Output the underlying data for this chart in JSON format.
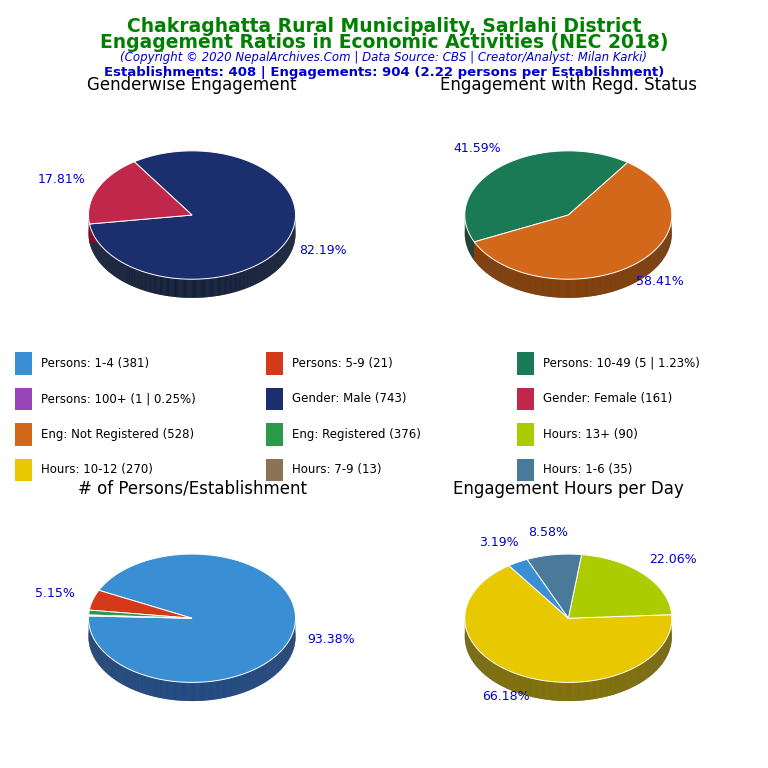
{
  "title_line1": "Chakraghatta Rural Municipality, Sarlahi District",
  "title_line2": "Engagement Ratios in Economic Activities (NEC 2018)",
  "subtitle": "(Copyright © 2020 NepalArchives.Com | Data Source: CBS | Creator/Analyst: Milan Karki)",
  "stats_line": "Establishments: 408 | Engagements: 904 (2.22 persons per Establishment)",
  "title_color": "#008000",
  "subtitle_color": "#0000cc",
  "stats_color": "#0000cc",
  "pie1_title": "Genderwise Engagement",
  "pie1_values": [
    82.19,
    17.81
  ],
  "pie1_colors": [
    "#1b2f6e",
    "#c0274a"
  ],
  "pie1_edge_colors": [
    "#0d1a3a",
    "#8b0a28"
  ],
  "pie1_labels": [
    "82.19%",
    "17.81%"
  ],
  "pie1_label_colors": [
    "#0000cc",
    "#0000cc"
  ],
  "pie1_startangle": 188,
  "pie2_title": "Engagement with Regd. Status",
  "pie2_values": [
    41.59,
    58.41
  ],
  "pie2_colors": [
    "#1a7a55",
    "#d4681a"
  ],
  "pie2_edge_colors": [
    "#0d3d2a",
    "#8b3d00"
  ],
  "pie2_labels": [
    "41.59%",
    "58.41%"
  ],
  "pie2_label_colors": [
    "#0000cc",
    "#0000cc"
  ],
  "pie2_startangle": 55,
  "pie3_title": "# of Persons/Establishment",
  "pie3_values": [
    93.38,
    5.15,
    1.22,
    0.25
  ],
  "pie3_colors": [
    "#3a8fd4",
    "#d43a1a",
    "#2a9a4a",
    "#9944bb"
  ],
  "pie3_edge_colors": [
    "#1a4a8b",
    "#8b1a00",
    "#1a5a2a",
    "#552299"
  ],
  "pie3_labels": [
    "93.38%",
    "5.15%",
    "",
    ""
  ],
  "pie3_label_colors": [
    "#0000cc",
    "#0000cc",
    "#0000cc",
    "#0000cc"
  ],
  "pie3_startangle": 178,
  "pie4_title": "Engagement Hours per Day",
  "pie4_values": [
    66.18,
    22.06,
    8.58,
    3.19
  ],
  "pie4_colors": [
    "#e8c800",
    "#aacc00",
    "#4a7a99",
    "#3a8fd4"
  ],
  "pie4_edge_colors": [
    "#8b7800",
    "#6a8800",
    "#1a3a55",
    "#1a5a8b"
  ],
  "pie4_labels": [
    "66.18%",
    "22.06%",
    "8.58%",
    "3.19%"
  ],
  "pie4_label_colors": [
    "#0000cc",
    "#0000cc",
    "#0000cc",
    "#0000cc"
  ],
  "pie4_startangle": 125,
  "legend_items": [
    {
      "label": "Persons: 1-4 (381)",
      "color": "#3a8fd4"
    },
    {
      "label": "Persons: 5-9 (21)",
      "color": "#d43a1a"
    },
    {
      "label": "Persons: 10-49 (5 | 1.23%)",
      "color": "#1a7a55"
    },
    {
      "label": "Persons: 100+ (1 | 0.25%)",
      "color": "#9944bb"
    },
    {
      "label": "Gender: Male (743)",
      "color": "#1b2f6e"
    },
    {
      "label": "Gender: Female (161)",
      "color": "#c0274a"
    },
    {
      "label": "Eng: Not Registered (528)",
      "color": "#d4681a"
    },
    {
      "label": "Eng: Registered (376)",
      "color": "#2a9a4a"
    },
    {
      "label": "Hours: 13+ (90)",
      "color": "#aacc00"
    },
    {
      "label": "Hours: 10-12 (270)",
      "color": "#e8c800"
    },
    {
      "label": "Hours: 7-9 (13)",
      "color": "#8B7355"
    },
    {
      "label": "Hours: 1-6 (35)",
      "color": "#4a7a99"
    }
  ],
  "legend_fontsize": 8.5,
  "pie_label_fontsize": 9,
  "pie_title_fontsize": 12
}
